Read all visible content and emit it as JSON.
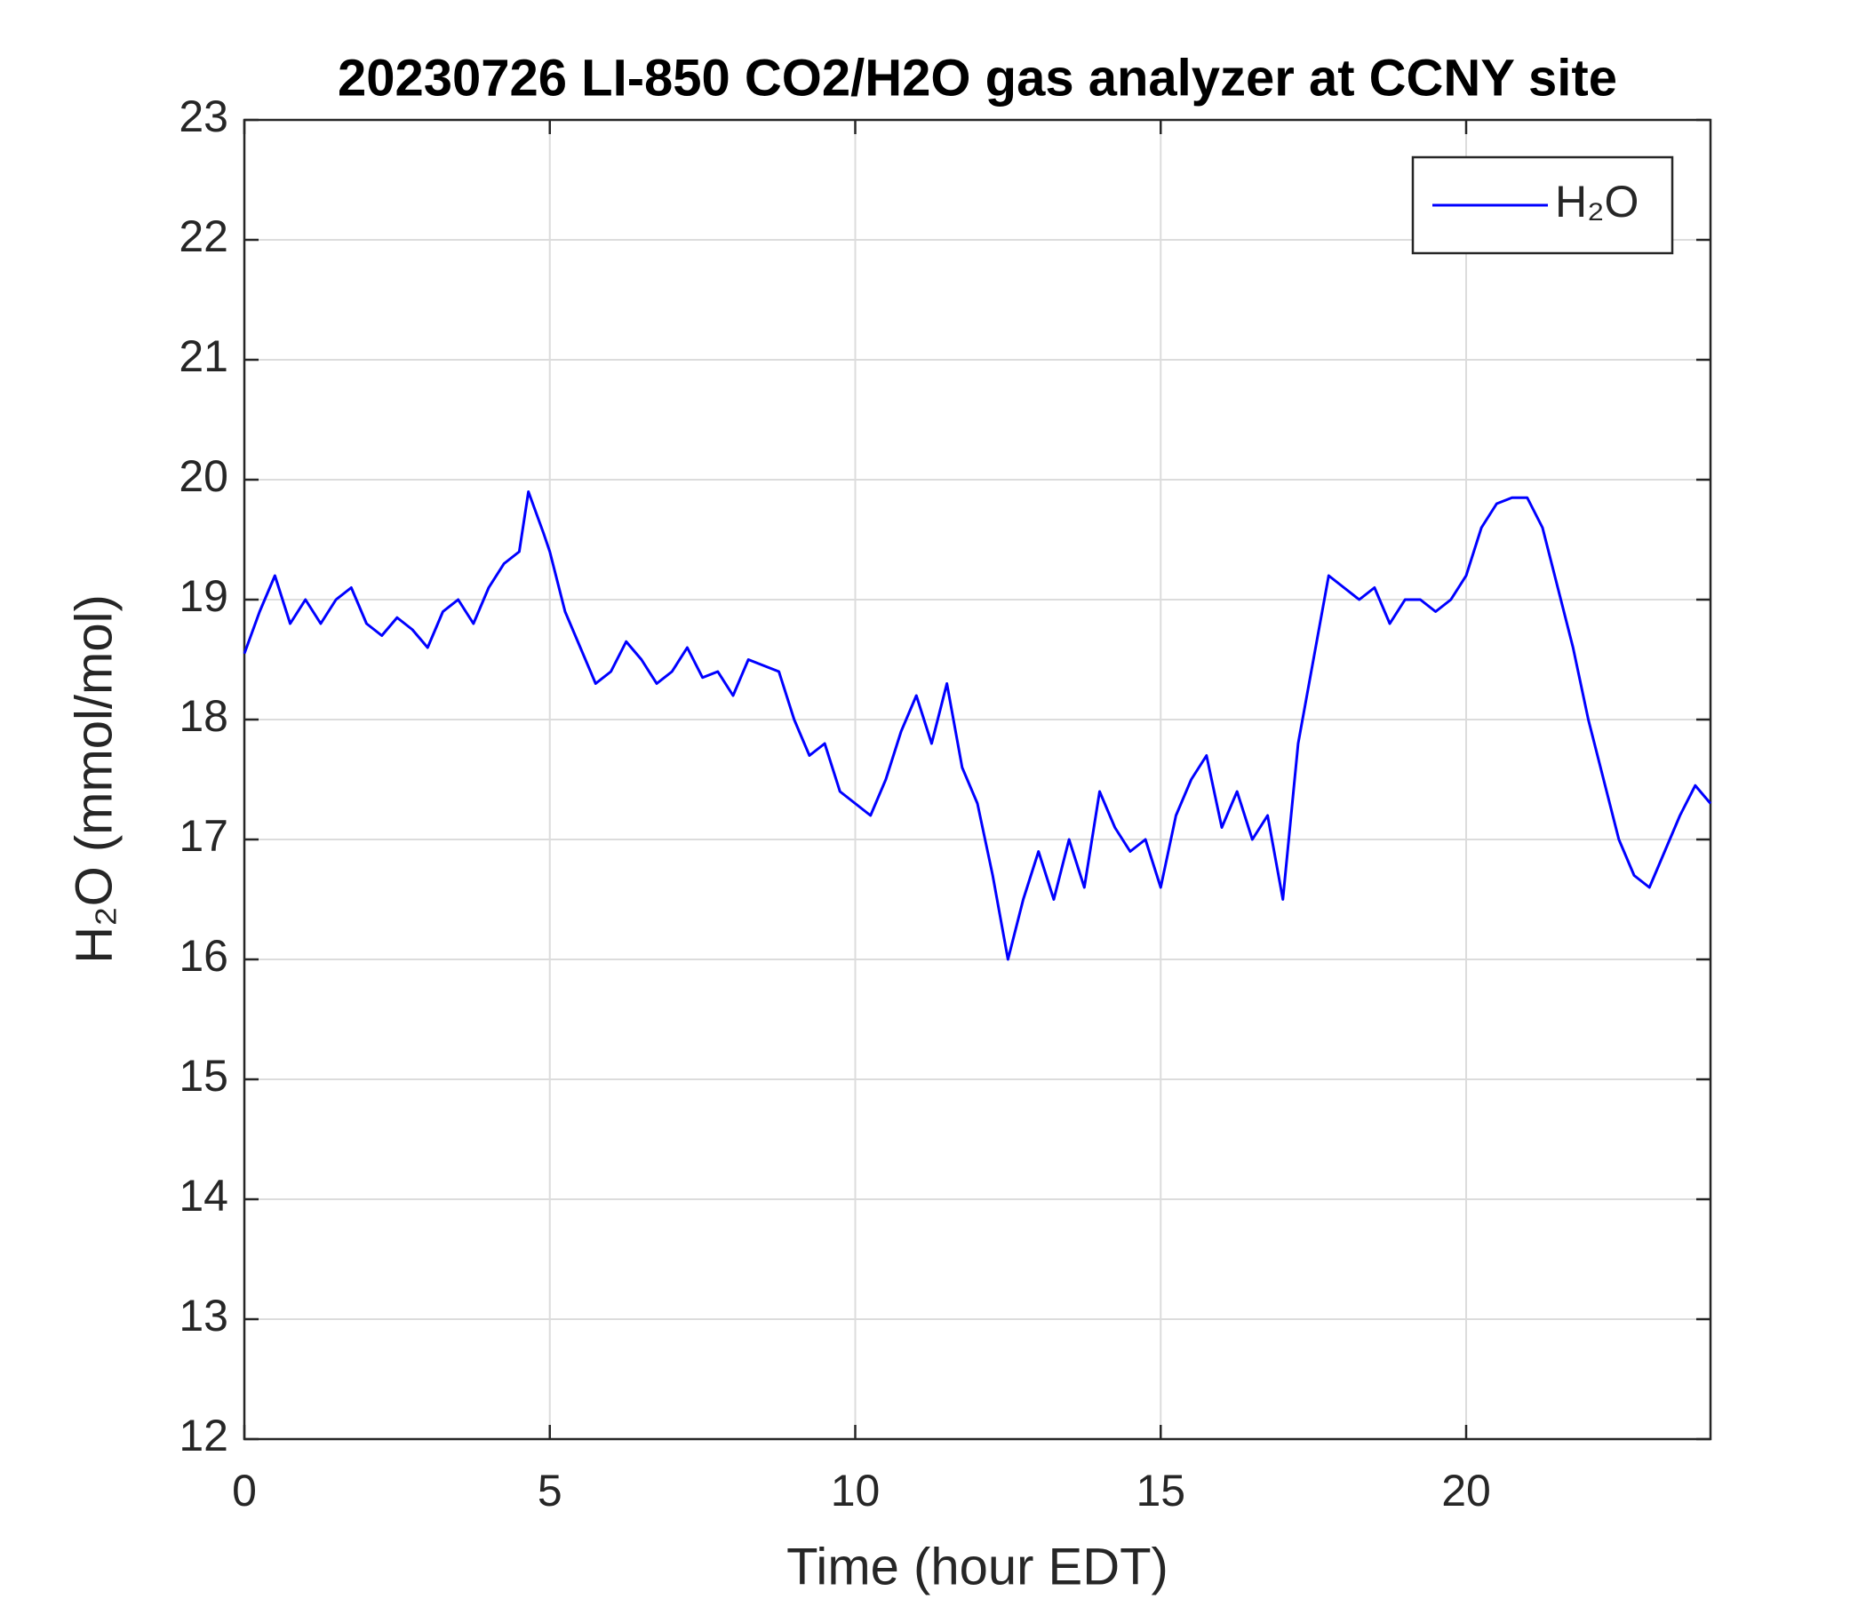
{
  "chart_data": {
    "type": "line",
    "title": "20230726 LI-850 CO2/H2O gas analyzer at CCNY site",
    "x_label": "Time (hour EDT)",
    "y_label": "H₂O (mmol/mol)",
    "xlim": [
      0,
      24
    ],
    "xticks": [
      0,
      5,
      10,
      15,
      20
    ],
    "ylim": [
      12,
      23
    ],
    "yticks": [
      12,
      13,
      14,
      15,
      16,
      17,
      18,
      19,
      20,
      21,
      22,
      23
    ],
    "grid": true,
    "legend": "upper right",
    "x": [
      0,
      0.25,
      0.5,
      0.75,
      1,
      1.25,
      1.5,
      1.75,
      2,
      2.25,
      2.5,
      2.75,
      3,
      3.25,
      3.5,
      3.75,
      4,
      4.25,
      4.5,
      4.65,
      4.9,
      5,
      5.25,
      5.5,
      5.75,
      6,
      6.25,
      6.5,
      6.75,
      7,
      7.25,
      7.5,
      7.75,
      8,
      8.25,
      8.5,
      8.75,
      9,
      9.25,
      9.5,
      9.75,
      10,
      10.25,
      10.5,
      10.75,
      11,
      11.25,
      11.5,
      11.75,
      12,
      12.25,
      12.5,
      12.75,
      13,
      13.25,
      13.5,
      13.75,
      14,
      14.25,
      14.5,
      14.75,
      15,
      15.25,
      15.5,
      15.75,
      16,
      16.25,
      16.5,
      16.75,
      17,
      17.25,
      17.5,
      17.75,
      18,
      18.25,
      18.5,
      18.75,
      19,
      19.25,
      19.5,
      19.75,
      20,
      20.25,
      20.5,
      20.75,
      21,
      21.25,
      21.5,
      21.75,
      22,
      22.25,
      22.5,
      22.75,
      23,
      23.25,
      23.5,
      23.75,
      24
    ],
    "series": [
      {
        "name": "H₂O",
        "color": "#0000ff",
        "values": [
          18.55,
          18.9,
          19.2,
          18.8,
          19.0,
          18.8,
          19.0,
          19.1,
          18.8,
          18.7,
          18.85,
          18.75,
          18.6,
          18.9,
          19.0,
          18.8,
          19.1,
          19.3,
          19.4,
          19.9,
          19.55,
          19.4,
          18.9,
          18.6,
          18.3,
          18.4,
          18.65,
          18.5,
          18.3,
          18.4,
          18.6,
          18.35,
          18.4,
          18.2,
          18.5,
          18.45,
          18.4,
          18.0,
          17.7,
          17.8,
          17.4,
          17.3,
          17.2,
          17.5,
          17.9,
          18.2,
          17.8,
          18.3,
          17.6,
          17.3,
          16.7,
          16.0,
          16.5,
          16.9,
          16.5,
          17.0,
          16.6,
          17.4,
          17.1,
          16.9,
          17.0,
          16.6,
          17.2,
          17.5,
          17.7,
          17.1,
          17.4,
          17.0,
          17.2,
          16.5,
          17.8,
          18.5,
          19.2,
          19.1,
          19.0,
          19.1,
          18.8,
          19.0,
          19.0,
          18.9,
          19.0,
          19.2,
          19.6,
          19.8,
          19.85,
          19.85,
          19.6,
          19.1,
          18.6,
          18.0,
          17.5,
          17.0,
          16.7,
          16.6,
          16.9,
          17.2,
          17.45,
          17.3
        ]
      }
    ]
  }
}
